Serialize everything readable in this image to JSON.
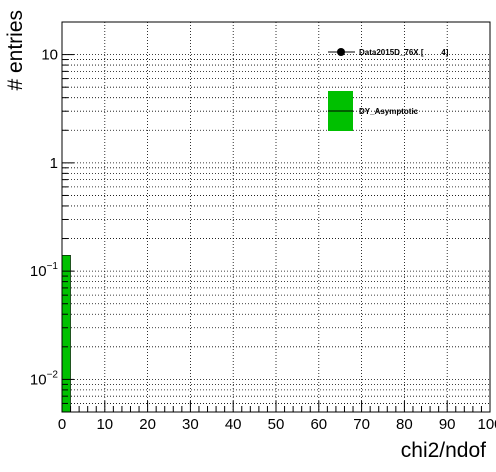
{
  "chart_data": {
    "type": "bar",
    "xlabel": "chi2/ndof",
    "ylabel": "# entries",
    "xlim": [
      0,
      100
    ],
    "ylim": [
      0.005,
      20
    ],
    "yscale": "log",
    "grid": true,
    "x_ticks": [
      "0",
      "10",
      "20",
      "30",
      "40",
      "50",
      "60",
      "70",
      "80",
      "90",
      "100"
    ],
    "y_ticks": [
      {
        "value": 0.01,
        "base": "10",
        "exp": "−2"
      },
      {
        "value": 0.1,
        "base": "10",
        "exp": "−1"
      },
      {
        "value": 1,
        "base": "1",
        "exp": ""
      },
      {
        "value": 10,
        "base": "10",
        "exp": ""
      }
    ],
    "series": [
      {
        "name": "DY_Asymptotic",
        "color": "#00c000",
        "bins": [
          {
            "x0": 0,
            "x1": 2,
            "value": 0.14
          }
        ]
      }
    ],
    "legend": {
      "placement": "top-right",
      "entries": [
        {
          "label": "Data2015D_76X [        4]",
          "marker": "point",
          "color": "#000000"
        },
        {
          "label": "DY_Asymptotic",
          "marker": "box",
          "color": "#00c000"
        }
      ]
    }
  }
}
